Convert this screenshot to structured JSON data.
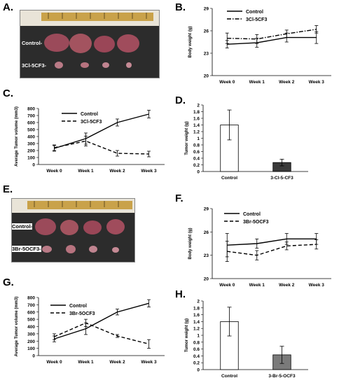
{
  "panels": {
    "A": "A.",
    "B": "B.",
    "C": "C.",
    "D": "D.",
    "E": "E.",
    "F": "F.",
    "G": "G.",
    "H": "H."
  },
  "photo_A": {
    "row1_label": "Control-",
    "row2_label": "3Cl-5CF3-"
  },
  "photo_E": {
    "row1_label": "Control-",
    "row2_label": "3Br-5OCF3-"
  },
  "chart_data": [
    {
      "id": "B",
      "type": "line",
      "categories": [
        "Week 0",
        "Week 1",
        "Week 2",
        "Week 3"
      ],
      "ylabel": "Body weight (g)",
      "ylim": [
        20,
        29
      ],
      "yticks": [
        20,
        23,
        26,
        29
      ],
      "legend_position": "top-right",
      "series": [
        {
          "name": "Control",
          "style": "solid",
          "values": [
            24.2,
            24.4,
            25.1,
            25.1
          ],
          "errors": [
            0.5,
            0.6,
            0.6,
            0.8
          ]
        },
        {
          "name": "3Cl-5CF3",
          "style": "dashdot",
          "values": [
            25.0,
            24.9,
            25.6,
            26.2
          ],
          "errors": [
            0.7,
            0.6,
            0.5,
            0.5
          ]
        }
      ]
    },
    {
      "id": "C",
      "type": "line",
      "categories": [
        "Week 0",
        "Week 1",
        "Week 2",
        "Week 3"
      ],
      "ylabel": "Average Tumor volume (mm3)",
      "ylim": [
        0,
        800
      ],
      "yticks": [
        0,
        100,
        200,
        300,
        400,
        500,
        600,
        700,
        800
      ],
      "legend_position": "top-right",
      "series": [
        {
          "name": "Control",
          "style": "solid",
          "values": [
            230,
            370,
            600,
            720
          ],
          "errors": [
            40,
            80,
            50,
            55
          ]
        },
        {
          "name": "3Cl-5CF3",
          "style": "dashed",
          "values": [
            240,
            335,
            160,
            150
          ],
          "errors": [
            40,
            70,
            40,
            40
          ]
        }
      ]
    },
    {
      "id": "D",
      "type": "bar",
      "categories": [
        "Control",
        "3-Cl-5-CF3"
      ],
      "ylabel": "Tumor weight (g)",
      "ylim": [
        0,
        2
      ],
      "yticks": [
        "0",
        "0.2",
        "0.4",
        "0.6",
        "0.8",
        "1",
        "1.2",
        "1.4",
        "1.6",
        "1.8",
        "2"
      ],
      "values": [
        1.4,
        0.27
      ],
      "errors": [
        0.45,
        0.1
      ],
      "colors": [
        "#ffffff",
        "#3a3a3a"
      ]
    },
    {
      "id": "F",
      "type": "line",
      "categories": [
        "Week 0",
        "Week 1",
        "Week 2",
        "Week 3"
      ],
      "ylabel": "Body weight (g)",
      "ylim": [
        20,
        29
      ],
      "yticks": [
        20,
        23,
        26,
        29
      ],
      "legend_position": "top-right",
      "series": [
        {
          "name": "Control",
          "style": "solid",
          "values": [
            24.3,
            24.5,
            25.1,
            25.1
          ],
          "errors": [
            1.5,
            0.6,
            0.7,
            0.7
          ]
        },
        {
          "name": "3Br-5OCF3",
          "style": "dashed",
          "values": [
            23.5,
            23.0,
            24.2,
            24.4
          ],
          "errors": [
            1.3,
            0.6,
            0.5,
            0.6
          ]
        }
      ]
    },
    {
      "id": "G",
      "type": "line",
      "categories": [
        "Week 0",
        "Week 1",
        "Week 2",
        "Week 3"
      ],
      "ylabel": "Average Tumor volume (mm3)",
      "ylim": [
        0,
        800
      ],
      "yticks": [
        0,
        100,
        200,
        300,
        400,
        500,
        600,
        700,
        800
      ],
      "legend_position": "top-right",
      "series": [
        {
          "name": "Control",
          "style": "solid",
          "values": [
            230,
            370,
            600,
            720
          ],
          "errors": [
            40,
            80,
            40,
            50
          ]
        },
        {
          "name": "3Br-5OCF3",
          "style": "dashed",
          "values": [
            260,
            450,
            270,
            160
          ],
          "errors": [
            40,
            50,
            20,
            60
          ]
        }
      ]
    },
    {
      "id": "H",
      "type": "bar",
      "categories": [
        "Control",
        "3-Br-5-OCF3"
      ],
      "ylabel": "Tumor weight (g)",
      "ylim": [
        0,
        2
      ],
      "yticks": [
        "0",
        "0.2",
        "0.4",
        "0.6",
        "0.8",
        "1",
        "1.2",
        "1.4",
        "1.6",
        "1.8",
        "2"
      ],
      "values": [
        1.4,
        0.43
      ],
      "errors": [
        0.42,
        0.25
      ],
      "colors": [
        "#ffffff",
        "#7a7a7a"
      ]
    }
  ],
  "colors": {
    "line": "#000000",
    "photo_bg": "#2c2c2c",
    "ruler": "#c9a24a",
    "tumor": "#9b4a5a"
  }
}
